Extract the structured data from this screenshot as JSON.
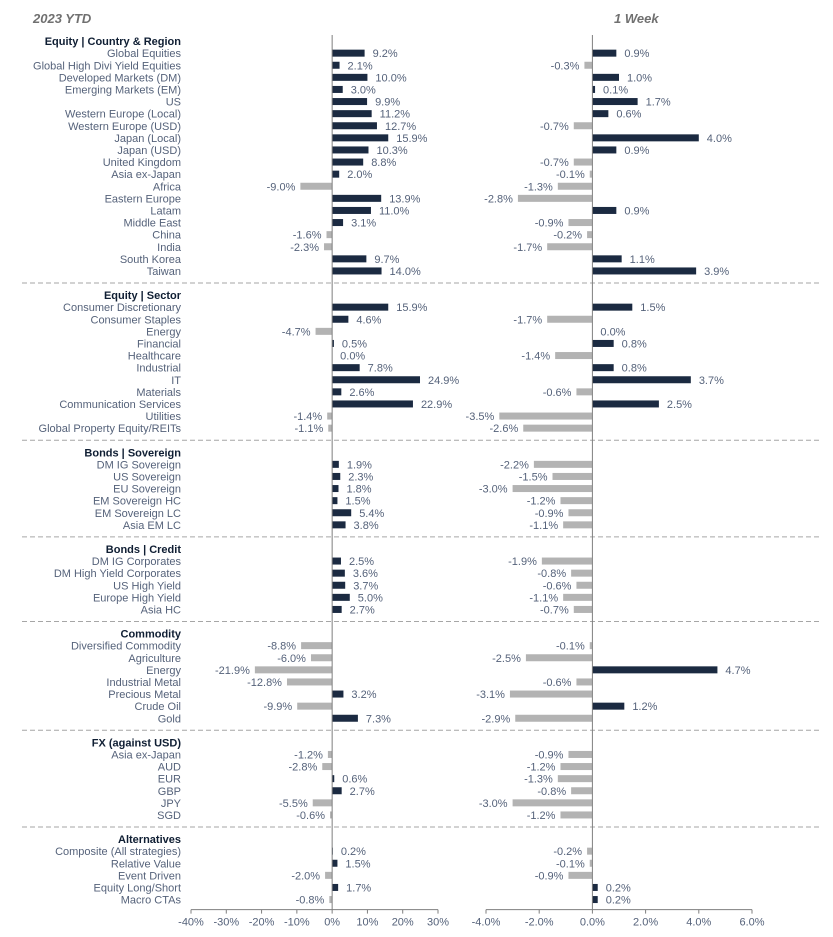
{
  "chart_data": {
    "type": "bar",
    "orientation": "horizontal",
    "panels": [
      {
        "title": "2023 YTD",
        "xlim": [
          -40,
          30
        ],
        "ticks": [
          -40,
          -30,
          -20,
          -10,
          0,
          10,
          20,
          30
        ]
      },
      {
        "title": "1 Week",
        "xlim": [
          -4,
          6
        ],
        "ticks": [
          -4,
          -2,
          0,
          2,
          4,
          6
        ]
      }
    ],
    "tick_labels": {
      "ytd": [
        "-40%",
        "-30%",
        "-20%",
        "-10%",
        "0%",
        "10%",
        "20%",
        "30%"
      ],
      "week": [
        "-4.0%",
        "-2.0%",
        "0.0%",
        "2.0%",
        "4.0%",
        "6.0%"
      ]
    },
    "colors": {
      "positive": "#1b2a41",
      "negative": "#b3b3b3",
      "separator": "#a6a6a6",
      "axis": "#7f7f7f"
    },
    "sections": [
      {
        "title": "Equity | Country & Region",
        "rows": [
          {
            "label": "Global Equities",
            "ytd": 9.2,
            "week": 0.9
          },
          {
            "label": "Global High Divi Yield Equities",
            "ytd": 2.1,
            "week": -0.3
          },
          {
            "label": "Developed Markets (DM)",
            "ytd": 10.0,
            "week": 1.0
          },
          {
            "label": "Emerging Markets (EM)",
            "ytd": 3.0,
            "week": 0.1
          },
          {
            "label": "US",
            "ytd": 9.9,
            "week": 1.7
          },
          {
            "label": "Western Europe (Local)",
            "ytd": 11.2,
            "week": 0.6
          },
          {
            "label": "Western Europe (USD)",
            "ytd": 12.7,
            "week": -0.7
          },
          {
            "label": "Japan (Local)",
            "ytd": 15.9,
            "week": 4.0
          },
          {
            "label": "Japan (USD)",
            "ytd": 10.3,
            "week": 0.9
          },
          {
            "label": "United Kingdom",
            "ytd": 8.8,
            "week": -0.7
          },
          {
            "label": "Asia ex-Japan",
            "ytd": 2.0,
            "week": -0.1
          },
          {
            "label": "Africa",
            "ytd": -9.0,
            "week": -1.3
          },
          {
            "label": "Eastern Europe",
            "ytd": 13.9,
            "week": -2.8
          },
          {
            "label": "Latam",
            "ytd": 11.0,
            "week": 0.9
          },
          {
            "label": "Middle East",
            "ytd": 3.1,
            "week": -0.9
          },
          {
            "label": "China",
            "ytd": -1.6,
            "week": -0.2
          },
          {
            "label": "India",
            "ytd": -2.3,
            "week": -1.7
          },
          {
            "label": "South Korea",
            "ytd": 9.7,
            "week": 1.1
          },
          {
            "label": "Taiwan",
            "ytd": 14.0,
            "week": 3.9
          }
        ]
      },
      {
        "title": "Equity | Sector",
        "rows": [
          {
            "label": "Consumer Discretionary",
            "ytd": 15.9,
            "week": 1.5
          },
          {
            "label": "Consumer Staples",
            "ytd": 4.6,
            "week": -1.7
          },
          {
            "label": "Energy",
            "ytd": -4.7,
            "week": 0.0
          },
          {
            "label": "Financial",
            "ytd": 0.5,
            "week": 0.8
          },
          {
            "label": "Healthcare",
            "ytd": 0.0,
            "week": -1.4
          },
          {
            "label": "Industrial",
            "ytd": 7.8,
            "week": 0.8
          },
          {
            "label": "IT",
            "ytd": 24.9,
            "week": 3.7
          },
          {
            "label": "Materials",
            "ytd": 2.6,
            "week": -0.6
          },
          {
            "label": "Communication Services",
            "ytd": 22.9,
            "week": 2.5
          },
          {
            "label": "Utilities",
            "ytd": -1.4,
            "week": -3.5
          },
          {
            "label": "Global Property Equity/REITs",
            "ytd": -1.1,
            "week": -2.6
          }
        ]
      },
      {
        "title": "Bonds | Sovereign",
        "rows": [
          {
            "label": "DM IG Sovereign",
            "ytd": 1.9,
            "week": -2.2
          },
          {
            "label": "US Sovereign",
            "ytd": 2.3,
            "week": -1.5
          },
          {
            "label": "EU Sovereign",
            "ytd": 1.8,
            "week": -3.0
          },
          {
            "label": "EM Sovereign HC",
            "ytd": 1.5,
            "week": -1.2
          },
          {
            "label": "EM Sovereign LC",
            "ytd": 5.4,
            "week": -0.9
          },
          {
            "label": "Asia EM LC",
            "ytd": 3.8,
            "week": -1.1
          }
        ]
      },
      {
        "title": "Bonds | Credit",
        "rows": [
          {
            "label": "DM IG Corporates",
            "ytd": 2.5,
            "week": -1.9
          },
          {
            "label": "DM High Yield Corporates",
            "ytd": 3.6,
            "week": -0.8
          },
          {
            "label": "US High Yield",
            "ytd": 3.7,
            "week": -0.6
          },
          {
            "label": "Europe High Yield",
            "ytd": 5.0,
            "week": -1.1
          },
          {
            "label": "Asia HC",
            "ytd": 2.7,
            "week": -0.7
          }
        ]
      },
      {
        "title": "Commodity",
        "rows": [
          {
            "label": "Diversified Commodity",
            "ytd": -8.8,
            "week": -0.1
          },
          {
            "label": "Agriculture",
            "ytd": -6.0,
            "week": -2.5
          },
          {
            "label": "Energy",
            "ytd": -21.9,
            "week": 4.7
          },
          {
            "label": "Industrial Metal",
            "ytd": -12.8,
            "week": -0.6
          },
          {
            "label": "Precious Metal",
            "ytd": 3.2,
            "week": -3.1
          },
          {
            "label": "Crude Oil",
            "ytd": -9.9,
            "week": 1.2
          },
          {
            "label": "Gold",
            "ytd": 7.3,
            "week": -2.9
          }
        ]
      },
      {
        "title": "FX (against USD)",
        "rows": [
          {
            "label": "Asia ex-Japan",
            "ytd": -1.2,
            "week": -0.9
          },
          {
            "label": "AUD",
            "ytd": -2.8,
            "week": -1.2
          },
          {
            "label": "EUR",
            "ytd": 0.6,
            "week": -1.3
          },
          {
            "label": "GBP",
            "ytd": 2.7,
            "week": -0.8
          },
          {
            "label": "JPY",
            "ytd": -5.5,
            "week": -3.0
          },
          {
            "label": "SGD",
            "ytd": -0.6,
            "week": -1.2
          }
        ]
      },
      {
        "title": "Alternatives",
        "rows": [
          {
            "label": "Composite (All strategies)",
            "ytd": 0.2,
            "week": -0.2
          },
          {
            "label": "Relative Value",
            "ytd": 1.5,
            "week": -0.1
          },
          {
            "label": "Event Driven",
            "ytd": -2.0,
            "week": -0.9
          },
          {
            "label": "Equity Long/Short",
            "ytd": 1.7,
            "week": 0.2
          },
          {
            "label": "Macro CTAs",
            "ytd": -0.8,
            "week": 0.2
          }
        ]
      }
    ]
  }
}
